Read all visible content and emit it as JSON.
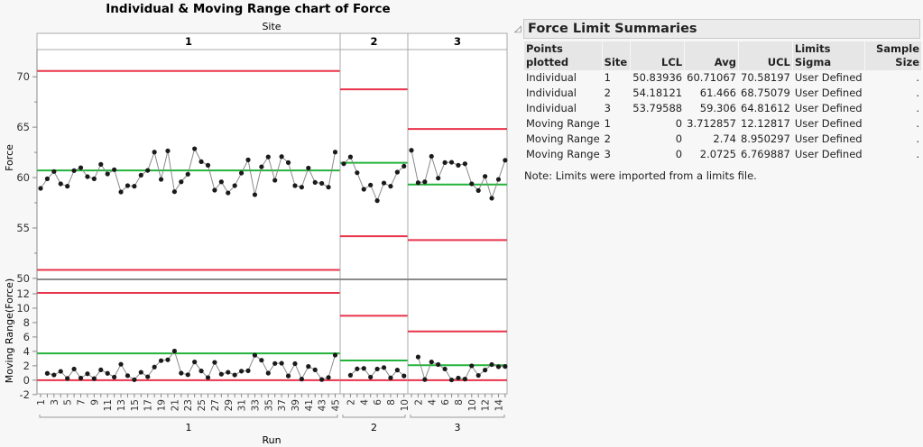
{
  "chart_data": {
    "type": "line",
    "title": "Individual & Moving Range chart of Force",
    "group_label": "Site",
    "xlabel": "Run",
    "grid": false,
    "sites": [
      {
        "name": "1",
        "individual": [
          58.93,
          59.88,
          60.6,
          59.38,
          59.14,
          60.69,
          60.98,
          60.09,
          59.88,
          61.31,
          60.36,
          60.78,
          58.57,
          59.2,
          59.14,
          60.24,
          60.71,
          62.53,
          59.82,
          62.65,
          58.6,
          59.58,
          60.33,
          62.86,
          61.58,
          61.22,
          58.75,
          59.58,
          58.48,
          59.2,
          60.45,
          61.76,
          58.3,
          61.07,
          62.05,
          59.73,
          62.08,
          61.49,
          59.2,
          59.05,
          60.95,
          59.52,
          59.43,
          59.05,
          62.53
        ],
        "x_ticks": [
          "1",
          "3",
          "5",
          "7",
          "9",
          "11",
          "13",
          "15",
          "17",
          "19",
          "21",
          "23",
          "25",
          "27",
          "29",
          "31",
          "33",
          "35",
          "37",
          "39",
          "41",
          "43",
          "45"
        ],
        "ind_limits": {
          "lcl": 50.83936,
          "avg": 60.71067,
          "ucl": 70.58197
        },
        "mr_limits": {
          "lcl": 0,
          "avg": 3.712857,
          "ucl": 12.12817
        }
      },
      {
        "name": "2",
        "individual": [
          61.37,
          62.05,
          60.48,
          58.84,
          59.26,
          57.71,
          59.46,
          59.14,
          60.54,
          61.13
        ],
        "x_ticks": [
          "2",
          "4",
          "6",
          "8",
          "10"
        ],
        "ind_limits": {
          "lcl": 54.18121,
          "avg": 61.466,
          "ucl": 68.75079
        },
        "mr_limits": {
          "lcl": 0,
          "avg": 2.74,
          "ucl": 8.950297
        }
      },
      {
        "name": "3",
        "individual": [
          62.71,
          59.49,
          59.58,
          62.11,
          59.94,
          61.49,
          61.52,
          61.22,
          61.37,
          59.38,
          58.72,
          60.12,
          57.95,
          59.82,
          61.72
        ],
        "x_ticks": [
          "2",
          "4",
          "6",
          "8",
          "10",
          "12",
          "14"
        ],
        "ind_limits": {
          "lcl": 53.79588,
          "avg": 59.306,
          "ucl": 64.81612
        },
        "mr_limits": {
          "lcl": 0,
          "avg": 2.0725,
          "ucl": 6.769887
        }
      }
    ],
    "individual_chart": {
      "ylabel": "Force",
      "ylim": [
        49.9,
        72.7
      ],
      "y_ticks": [
        "50",
        "55",
        "60",
        "65",
        "70"
      ]
    },
    "mr_chart": {
      "ylabel": "Moving Range(Force)",
      "ylim": [
        -1.9,
        14
      ],
      "y_ticks": [
        "-2",
        "0",
        "2",
        "4",
        "6",
        "8",
        "10",
        "12"
      ]
    },
    "colors": {
      "limit": "#e8334a",
      "center": "#22b33a",
      "points": "#1a1a1a",
      "connector": "#8a8a8a"
    }
  },
  "summary": {
    "title": "Force Limit Summaries",
    "headers": {
      "points": "Points",
      "plotted": "plotted",
      "site": "Site",
      "lcl": "LCL",
      "avg": "Avg",
      "ucl": "UCL",
      "limits": "Limits",
      "sigma": "Sigma",
      "sample_size": "Sample Size"
    },
    "rows": [
      {
        "points": "Individual",
        "site": "1",
        "lcl": "50.83936",
        "avg": "60.71067",
        "ucl": "70.58197",
        "sigma": "User Defined",
        "n": "."
      },
      {
        "points": "Individual",
        "site": "2",
        "lcl": "54.18121",
        "avg": "61.466",
        "ucl": "68.75079",
        "sigma": "User Defined",
        "n": "."
      },
      {
        "points": "Individual",
        "site": "3",
        "lcl": "53.79588",
        "avg": "59.306",
        "ucl": "64.81612",
        "sigma": "User Defined",
        "n": "."
      },
      {
        "points": "Moving Range",
        "site": "1",
        "lcl": "0",
        "avg": "3.712857",
        "ucl": "12.12817",
        "sigma": "User Defined",
        "n": "."
      },
      {
        "points": "Moving Range",
        "site": "2",
        "lcl": "0",
        "avg": "2.74",
        "ucl": "8.950297",
        "sigma": "User Defined",
        "n": "."
      },
      {
        "points": "Moving Range",
        "site": "3",
        "lcl": "0",
        "avg": "2.0725",
        "ucl": "6.769887",
        "sigma": "User Defined",
        "n": "."
      }
    ],
    "note": "Note: Limits were imported from a limits file."
  }
}
